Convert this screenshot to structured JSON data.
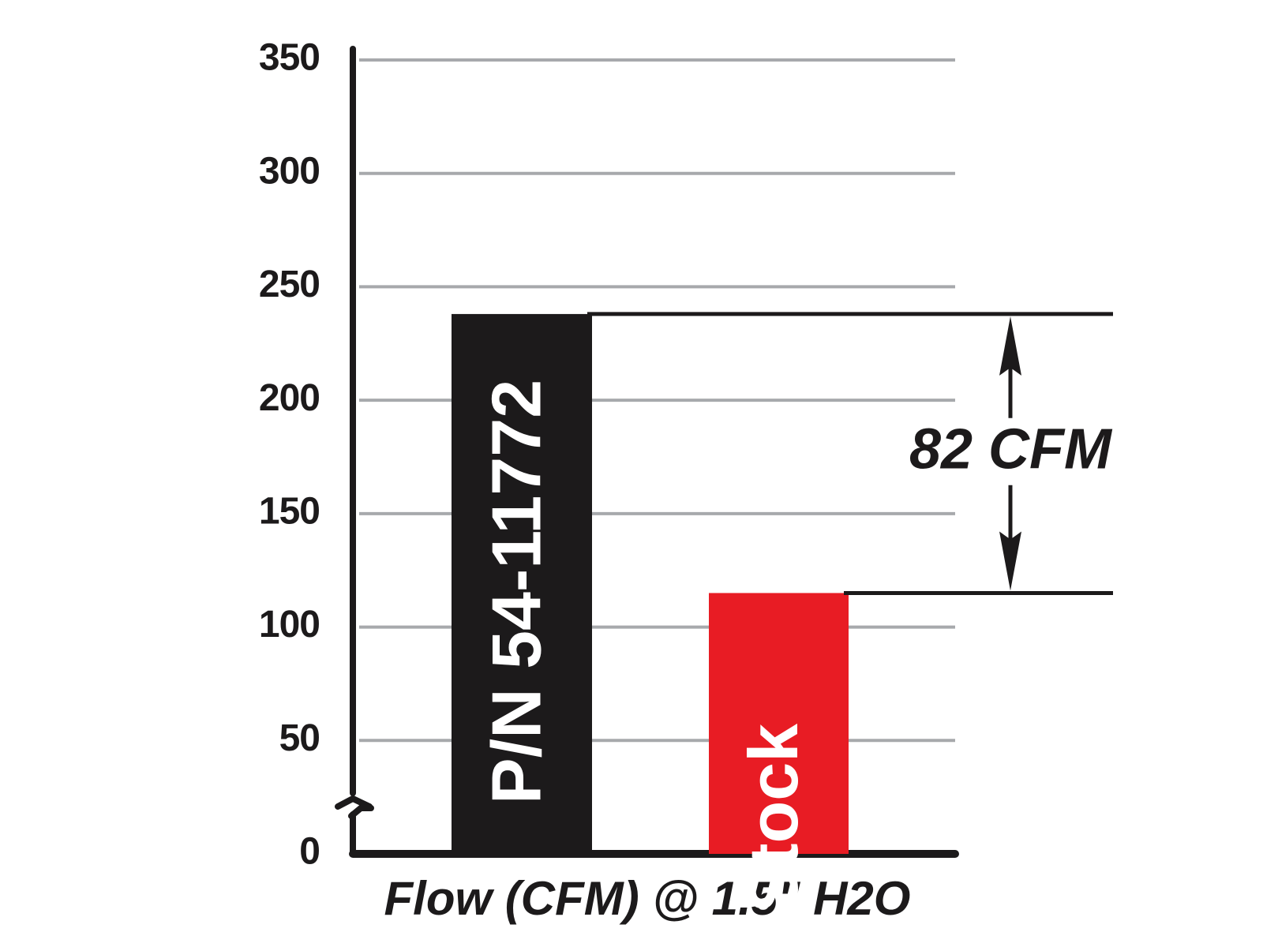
{
  "chart_data": {
    "type": "bar",
    "categories": [
      "P/N 54-11772",
      "Stock"
    ],
    "values": [
      238,
      115
    ],
    "colors": [
      "#1c1a1b",
      "#e81c24"
    ],
    "ylim": [
      0,
      350
    ],
    "yticks": [
      0,
      50,
      100,
      150,
      200,
      250,
      300,
      350
    ],
    "grid": true,
    "xlabel": "Flow (CFM) @ 1.5\" H2O",
    "annotation": "82 CFM"
  }
}
